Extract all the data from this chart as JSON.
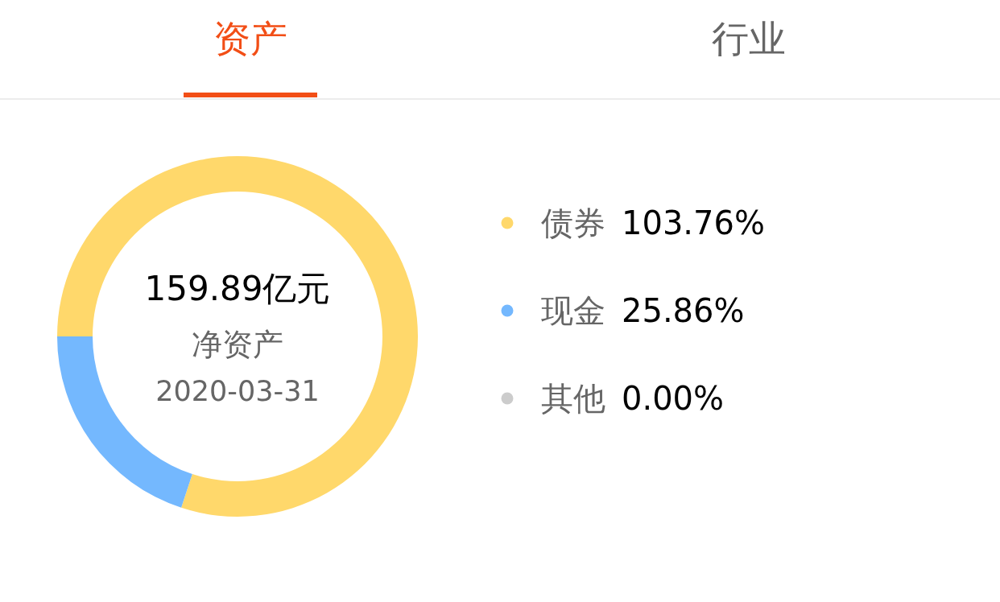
{
  "chart_data": {
    "type": "donut",
    "categories": [
      "债券",
      "现金",
      "其他"
    ],
    "values": [
      103.76,
      25.86,
      0.0
    ],
    "colors": [
      "#ffd86b",
      "#74b8fe",
      "#cccccc"
    ],
    "value_labels": [
      "103.76%",
      "25.86%",
      "0.00%"
    ],
    "legend": "right",
    "annotations": [
      "资产",
      "行业",
      "159.89亿元",
      "净资产",
      "2020-03-31"
    ]
  }
}
